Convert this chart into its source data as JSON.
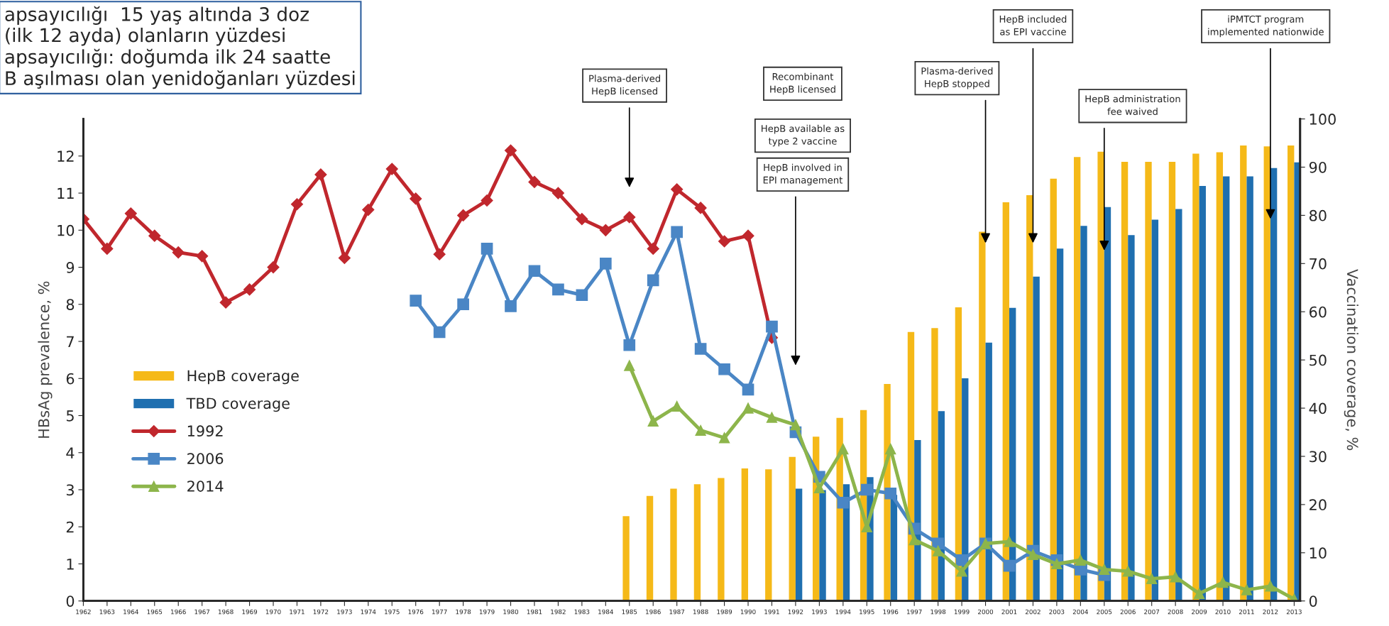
{
  "chart_data": {
    "type": "bar",
    "xlabel": null,
    "ylabel": "HBsAg prevalence, %",
    "y2label": "Vaccination coverage, %",
    "categories": [
      "1962",
      "1963",
      "1964",
      "1965",
      "1966",
      "1967",
      "1968",
      "1969",
      "1970",
      "1971",
      "1972",
      "1973",
      "1974",
      "1975",
      "1976",
      "1977",
      "1978",
      "1979",
      "1980",
      "1981",
      "1982",
      "1983",
      "1984",
      "1985",
      "1986",
      "1987",
      "1988",
      "1989",
      "1990",
      "1991",
      "1992",
      "1993",
      "1994",
      "1995",
      "1996",
      "1997",
      "1998",
      "1999",
      "2000",
      "2001",
      "2002",
      "2003",
      "2004",
      "2005",
      "2006",
      "2007",
      "2008",
      "2009",
      "2010",
      "2011",
      "2012",
      "2013"
    ],
    "ylim": [
      0,
      13
    ],
    "yticks": [
      0,
      1,
      2,
      3,
      4,
      5,
      6,
      7,
      8,
      9,
      10,
      11,
      12
    ],
    "y2lim": [
      0,
      100
    ],
    "y2ticks": [
      0,
      10,
      20,
      30,
      40,
      50,
      60,
      70,
      80,
      90,
      100
    ],
    "grid": false,
    "legend": "left",
    "series": [
      {
        "name": "HepB coverage",
        "axis": "y2",
        "color": "#f5b918",
        "values": [
          null,
          null,
          null,
          null,
          null,
          null,
          null,
          null,
          null,
          null,
          null,
          null,
          null,
          null,
          null,
          null,
          null,
          null,
          null,
          null,
          null,
          null,
          null,
          17.6,
          21.8,
          23.3,
          24.2,
          25.5,
          27.5,
          27.3,
          29.9,
          34.1,
          38.0,
          39.6,
          45.0,
          55.8,
          56.6,
          60.9,
          76.6,
          82.7,
          84.2,
          87.6,
          92.1,
          93.2,
          91.1,
          91.1,
          91.1,
          92.8,
          93.1,
          94.5,
          94.3,
          94.5
        ]
      },
      {
        "name": "TBD coverage",
        "axis": "y2",
        "color": "#1f6fb0",
        "values": [
          null,
          null,
          null,
          null,
          null,
          null,
          null,
          null,
          null,
          null,
          null,
          null,
          null,
          null,
          null,
          null,
          null,
          null,
          null,
          null,
          null,
          null,
          null,
          null,
          null,
          null,
          null,
          null,
          null,
          null,
          23.3,
          23.0,
          24.2,
          25.7,
          22.0,
          33.4,
          39.4,
          46.2,
          53.6,
          60.8,
          67.3,
          73.1,
          77.8,
          81.7,
          75.9,
          79.1,
          81.3,
          86.1,
          88.1,
          88.1,
          89.8,
          91.0
        ]
      },
      {
        "name": "1992",
        "type": "line",
        "marker": "diamond",
        "color": "#c0272d",
        "values": [
          10.3,
          9.5,
          10.45,
          9.85,
          9.4,
          9.3,
          8.05,
          8.4,
          9.0,
          10.7,
          11.5,
          9.25,
          10.55,
          11.65,
          10.85,
          9.35,
          10.4,
          10.8,
          12.15,
          11.3,
          11.0,
          10.3,
          10.0,
          10.35,
          9.5,
          11.1,
          10.6,
          9.7,
          9.85,
          7.1,
          null,
          null,
          null,
          null,
          null,
          null,
          null,
          null,
          null,
          null,
          null,
          null,
          null,
          null,
          null,
          null,
          null,
          null,
          null,
          null,
          null,
          null
        ]
      },
      {
        "name": "2006",
        "type": "line",
        "marker": "square",
        "color": "#4a86c5",
        "values": [
          null,
          null,
          null,
          null,
          null,
          null,
          null,
          null,
          null,
          null,
          null,
          null,
          null,
          null,
          8.1,
          7.25,
          8.0,
          9.5,
          7.95,
          8.9,
          8.4,
          8.25,
          9.1,
          6.9,
          8.65,
          9.95,
          6.8,
          6.25,
          5.7,
          7.4,
          4.55,
          3.35,
          2.65,
          3.0,
          2.9,
          1.95,
          1.55,
          1.1,
          1.55,
          0.95,
          1.35,
          1.1,
          0.85,
          0.7,
          null,
          null,
          null,
          null,
          null,
          null,
          null,
          null
        ]
      },
      {
        "name": "2014",
        "type": "line",
        "marker": "triangle",
        "color": "#8db54b",
        "values": [
          null,
          null,
          null,
          null,
          null,
          null,
          null,
          null,
          null,
          null,
          null,
          null,
          null,
          null,
          null,
          null,
          null,
          null,
          null,
          null,
          null,
          null,
          null,
          6.35,
          4.85,
          5.25,
          4.6,
          4.4,
          5.2,
          4.95,
          4.75,
          3.05,
          4.1,
          2.0,
          4.1,
          1.65,
          1.35,
          0.8,
          1.55,
          1.6,
          1.25,
          1.0,
          1.1,
          0.85,
          0.8,
          0.6,
          0.65,
          0.2,
          0.5,
          0.3,
          0.4,
          0.05
        ]
      }
    ],
    "annotations": [
      "apsayıcılığı  15 yaş altında 3 doz",
      "(ilk 12 ayda) olanların yüzdesi",
      "apsayıcılığı: doğumda ilk 24 saatte",
      "B aşılması olan yenidoğanları yüzdesi",
      "Plasma-derived\nHepB licensed",
      "Recombinant\nHepB licensed",
      "HepB available as\ntype 2 vaccine",
      "HepB involved in\nEPI management",
      {
        "text": "Plasma-derived\nHepB stopped",
        "x": "2000",
        "y": 9.6
      },
      "HepB included\nas EPI vaccine",
      "HepB administration\nfee waived",
      {
        "text": "iPMTCT program\nimplemented nationwide",
        "x": "2012",
        "y": 10.25
      }
    ]
  }
}
